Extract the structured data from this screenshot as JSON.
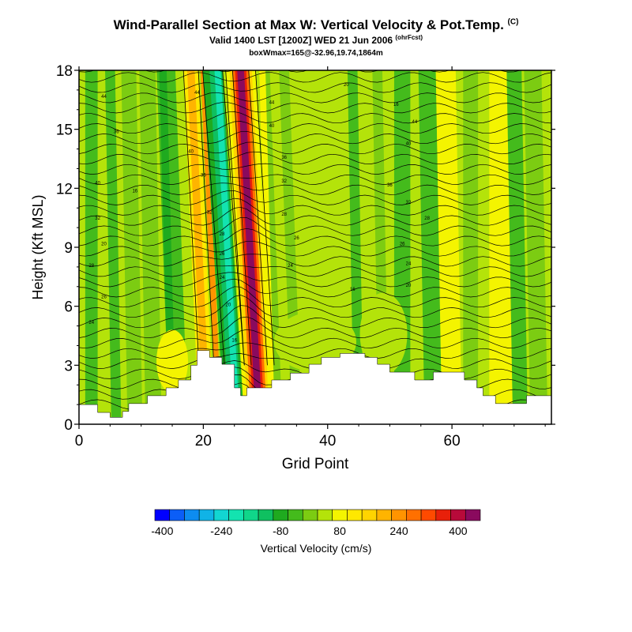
{
  "header": {
    "title": "Wind-Parallel Section at Max W: Vertical Velocity & Pot.Temp.",
    "title_mark": "(C)",
    "valid_line": "Valid 1400 LST [1200Z] WED 21 Jun 2006",
    "valid_mark": "(ohrFcst)",
    "box_line": "boxWmax=165@-32.96,19.74,1864m"
  },
  "chart_data": {
    "type": "heatmap",
    "xlabel": "Grid Point",
    "ylabel": "Height (Kft MSL)",
    "xlim": [
      0,
      76
    ],
    "ylim": [
      0,
      18
    ],
    "x_ticks": [
      0,
      20,
      40,
      60
    ],
    "y_ticks": [
      0,
      3,
      6,
      9,
      12,
      15,
      18
    ],
    "colorbar": {
      "label": "Vertical Velocity (cm/s)",
      "tick_labels": [
        "-400",
        "-240",
        "-80",
        "80",
        "240",
        "400"
      ],
      "tick_values": [
        -400,
        -240,
        -80,
        80,
        240,
        400
      ],
      "levels": [
        -400,
        -360,
        -320,
        -280,
        -240,
        -200,
        -160,
        -120,
        -80,
        -40,
        0,
        40,
        80,
        120,
        160,
        200,
        240,
        280,
        320,
        360,
        400,
        440
      ],
      "colors": [
        "#0000ff",
        "#0b5ef7",
        "#0d8cf0",
        "#10b3e6",
        "#12d6d2",
        "#13e3b0",
        "#10d68a",
        "#0fc060",
        "#1faa1f",
        "#44bb1c",
        "#7ccc12",
        "#b4e30a",
        "#f4f400",
        "#ffe800",
        "#ffd400",
        "#ffb400",
        "#ff9400",
        "#ff7000",
        "#ff4a00",
        "#e8200a",
        "#b80a3a",
        "#8a0a5e"
      ]
    },
    "terrain_kft": [
      [
        0,
        1.0
      ],
      [
        3,
        1.0
      ],
      [
        3,
        0.6
      ],
      [
        5,
        0.6
      ],
      [
        5,
        0.35
      ],
      [
        7,
        0.35
      ],
      [
        7,
        0.65
      ],
      [
        8,
        0.65
      ],
      [
        8,
        1.05
      ],
      [
        11,
        1.05
      ],
      [
        11,
        1.45
      ],
      [
        14,
        1.45
      ],
      [
        14,
        1.85
      ],
      [
        16,
        1.85
      ],
      [
        16,
        2.25
      ],
      [
        18,
        2.25
      ],
      [
        18,
        3.0
      ],
      [
        19,
        3.0
      ],
      [
        19,
        3.75
      ],
      [
        21,
        3.75
      ],
      [
        21,
        3.4
      ],
      [
        23,
        3.4
      ],
      [
        23,
        3.05
      ],
      [
        25,
        3.05
      ],
      [
        25,
        1.85
      ],
      [
        26,
        1.85
      ],
      [
        26,
        1.45
      ],
      [
        27,
        1.45
      ],
      [
        27,
        1.85
      ],
      [
        31,
        1.85
      ],
      [
        31,
        2.25
      ],
      [
        34,
        2.25
      ],
      [
        34,
        2.6
      ],
      [
        37,
        2.6
      ],
      [
        37,
        3.05
      ],
      [
        39,
        3.05
      ],
      [
        39,
        3.4
      ],
      [
        42,
        3.4
      ],
      [
        42,
        3.6
      ],
      [
        46,
        3.6
      ],
      [
        46,
        3.4
      ],
      [
        48,
        3.4
      ],
      [
        48,
        3.05
      ],
      [
        50,
        3.05
      ],
      [
        50,
        2.65
      ],
      [
        54,
        2.65
      ],
      [
        54,
        2.25
      ],
      [
        57,
        2.25
      ],
      [
        57,
        2.65
      ],
      [
        62,
        2.65
      ],
      [
        62,
        2.25
      ],
      [
        64,
        2.25
      ],
      [
        64,
        1.85
      ],
      [
        65,
        1.85
      ],
      [
        65,
        1.45
      ],
      [
        67,
        1.45
      ],
      [
        67,
        1.05
      ],
      [
        72,
        1.05
      ],
      [
        72,
        1.45
      ],
      [
        76,
        1.45
      ]
    ],
    "updraft_core": {
      "peak_w_cm_s": 165,
      "grid_point_at_base": 29,
      "grid_point_at_top": 26
    },
    "downdraft_core": {
      "grid_point_at_base": 25,
      "grid_point_at_top": 22
    },
    "contour_labels": [
      "44",
      "40",
      "36",
      "32",
      "28",
      "26",
      "24",
      "20",
      "16"
    ]
  }
}
